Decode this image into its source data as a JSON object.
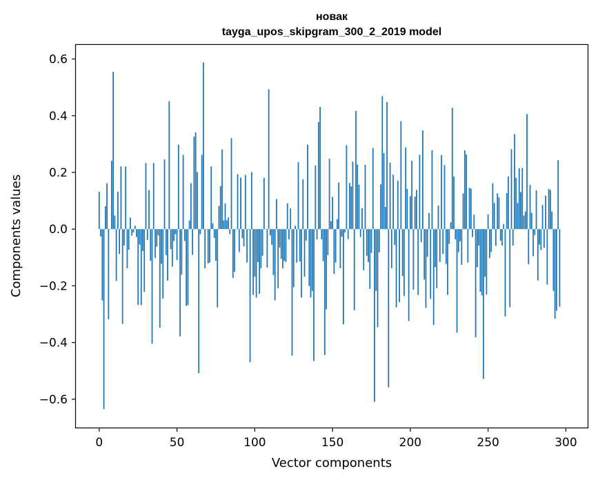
{
  "chart_data": {
    "type": "bar",
    "title": "новак",
    "subtitle": "tayga_upos_skipgram_300_2_2019 model",
    "xlabel": "Vector components",
    "ylabel": "Components values",
    "xlim": [
      -15,
      314
    ],
    "ylim": [
      -0.7,
      0.65
    ],
    "xticks": [
      0,
      50,
      100,
      150,
      200,
      250,
      300
    ],
    "xtick_labels": [
      "0",
      "50",
      "100",
      "150",
      "200",
      "250",
      "300"
    ],
    "yticks": [
      -0.6,
      -0.4,
      -0.2,
      0.0,
      0.2,
      0.4,
      0.6
    ],
    "ytick_labels": [
      "−0.6",
      "−0.4",
      "−0.2",
      "0.0",
      "0.2",
      "0.4",
      "0.6"
    ],
    "grid": false,
    "legend": "none",
    "bar_color": "#1f77b4",
    "x": "0..299 (one bar per component index)",
    "values": [
      0.132,
      -0.026,
      -0.252,
      -0.635,
      0.081,
      0.162,
      -0.318,
      0.0,
      0.241,
      0.555,
      0.048,
      -0.183,
      0.132,
      -0.088,
      0.221,
      -0.334,
      -0.058,
      0.221,
      -0.138,
      -0.073,
      0.041,
      -0.023,
      -0.012,
      0.012,
      -0.028,
      -0.268,
      -0.055,
      -0.268,
      -0.077,
      -0.221,
      0.233,
      -0.038,
      0.138,
      -0.112,
      -0.404,
      0.233,
      -0.102,
      -0.062,
      -0.022,
      -0.348,
      -0.122,
      -0.245,
      0.246,
      -0.092,
      -0.182,
      0.451,
      -0.071,
      -0.132,
      -0.042,
      -0.018,
      -0.109,
      0.298,
      -0.378,
      -0.161,
      0.262,
      -0.042,
      -0.271,
      -0.268,
      0.031,
      0.162,
      -0.091,
      0.326,
      0.341,
      0.201,
      -0.508,
      -0.018,
      0.262,
      0.588,
      -0.138,
      0.0,
      -0.121,
      -0.118,
      0.221,
      0.021,
      -0.031,
      -0.112,
      -0.276,
      0.082,
      0.152,
      0.281,
      0.031,
      0.091,
      0.031,
      0.041,
      -0.018,
      0.321,
      -0.172,
      -0.151,
      0.0,
      0.194,
      -0.081,
      0.182,
      -0.032,
      -0.061,
      0.191,
      -0.118,
      0.0,
      -0.469,
      0.201,
      -0.232,
      -0.168,
      -0.242,
      -0.116,
      -0.228,
      -0.138,
      -0.094,
      0.181,
      0.0,
      -0.136,
      0.493,
      -0.022,
      -0.055,
      -0.162,
      -0.251,
      0.106,
      -0.208,
      -0.065,
      -0.105,
      -0.138,
      -0.112,
      -0.116,
      0.091,
      -0.036,
      0.073,
      -0.446,
      -0.205,
      0.012,
      -0.118,
      0.236,
      -0.114,
      -0.241,
      0.176,
      -0.168,
      -0.041,
      0.298,
      -0.201,
      -0.241,
      -0.218,
      -0.465,
      0.225,
      -0.036,
      0.378,
      0.431,
      -0.036,
      -0.113,
      -0.444,
      -0.283,
      -0.092,
      0.248,
      0.028,
      0.114,
      -0.158,
      -0.118,
      0.035,
      0.164,
      -0.138,
      -0.027,
      -0.336,
      -0.012,
      0.296,
      -0.035,
      0.163,
      0.151,
      0.238,
      -0.286,
      0.417,
      0.228,
      0.157,
      -0.028,
      0.074,
      -0.145,
      0.227,
      -0.094,
      -0.116,
      -0.211,
      -0.084,
      0.286,
      -0.609,
      -0.218,
      -0.346,
      -0.082,
      0.158,
      0.469,
      0.268,
      0.078,
      0.448,
      -0.558,
      0.234,
      -0.138,
      0.192,
      -0.056,
      -0.276,
      0.171,
      -0.258,
      0.381,
      -0.165,
      -0.236,
      0.288,
      0.142,
      -0.324,
      0.116,
      0.241,
      -0.214,
      0.115,
      0.138,
      -0.232,
      0.262,
      -0.046,
      0.348,
      -0.178,
      -0.278,
      -0.098,
      0.057,
      -0.246,
      0.278,
      -0.338,
      -0.134,
      -0.208,
      0.083,
      -0.116,
      0.261,
      -0.088,
      0.226,
      -0.123,
      -0.232,
      -0.052,
      0.024,
      0.428,
      0.186,
      -0.036,
      -0.365,
      -0.081,
      -0.043,
      -0.126,
      0.126,
      0.278,
      0.263,
      -0.118,
      0.146,
      0.143,
      -0.028,
      0.051,
      -0.382,
      -0.134,
      -0.058,
      -0.221,
      -0.234,
      -0.528,
      -0.168,
      -0.231,
      0.052,
      -0.102,
      -0.081,
      0.162,
      0.092,
      -0.059,
      0.126,
      0.112,
      -0.041,
      -0.058,
      0.018,
      -0.308,
      0.127,
      0.186,
      -0.275,
      0.282,
      -0.058,
      0.335,
      0.181,
      0.092,
      0.215,
      0.131,
      0.216,
      0.048,
      0.062,
      0.406,
      -0.124,
      0.156,
      0.058,
      -0.095,
      -0.021,
      0.137,
      -0.181,
      -0.055,
      -0.074,
      0.085,
      -0.066,
      0.118,
      -0.196,
      0.142,
      0.138,
      0.062,
      -0.218,
      -0.316,
      -0.288,
      0.243,
      -0.274
    ]
  }
}
